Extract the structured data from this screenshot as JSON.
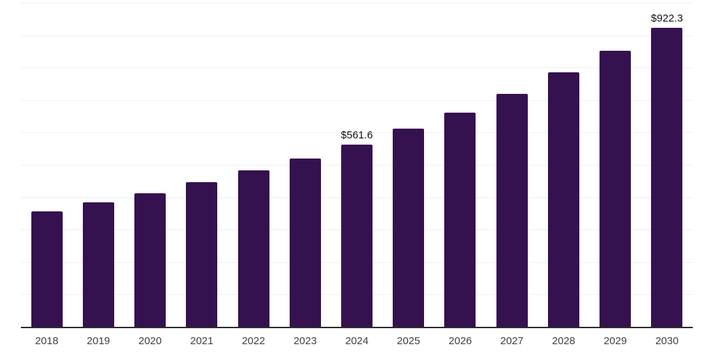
{
  "chart_data": {
    "type": "bar",
    "title": "",
    "xlabel": "",
    "ylabel": "",
    "categories": [
      "2018",
      "2019",
      "2020",
      "2021",
      "2022",
      "2023",
      "2024",
      "2025",
      "2026",
      "2027",
      "2028",
      "2029",
      "2030"
    ],
    "values": [
      357.0,
      384.5,
      412.0,
      446.5,
      483.0,
      519.0,
      561.6,
      612.5,
      661.5,
      719.5,
      785.5,
      852.0,
      922.3
    ],
    "data_labels": [
      {
        "category": "2024",
        "text": "$561.6"
      },
      {
        "category": "2030",
        "text": "$922.3"
      }
    ],
    "ylim": [
      0,
      1000
    ],
    "gridline_step": 100,
    "grid": "horizontal-only",
    "legend_position": "none",
    "y_tick_labels_visible": false
  },
  "colors": {
    "bar": "#35114f",
    "axis_line": "#2b2b2b",
    "gridline": "#f0f0f0",
    "tick_label": "#3f3f3f",
    "data_label": "#111111",
    "background": "#ffffff"
  }
}
